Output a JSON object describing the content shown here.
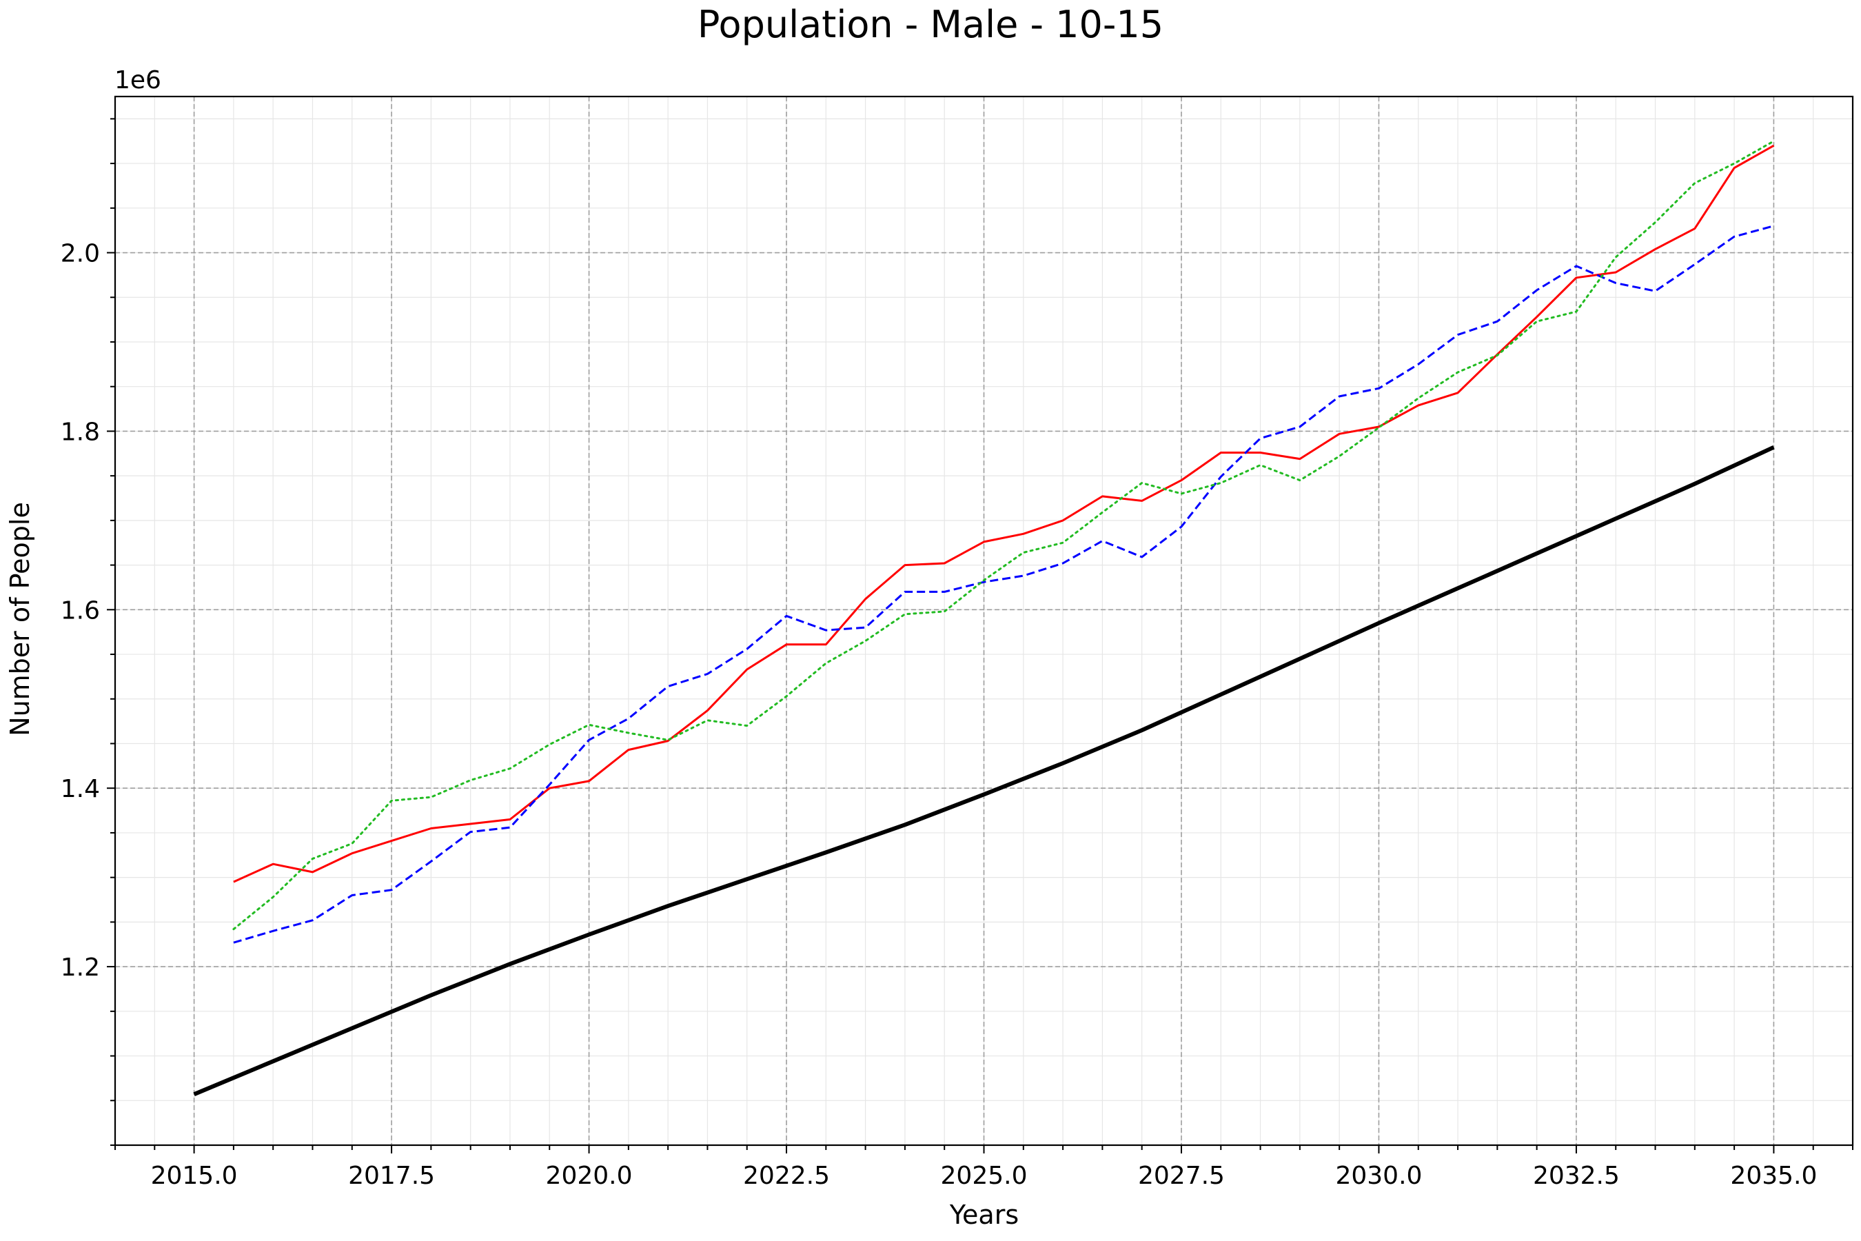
{
  "chart_data": {
    "type": "line",
    "title": "Population - Male - 10-15",
    "xlabel": "Years",
    "ylabel": "Number of People",
    "y_offset_label": "1e6",
    "xlim": [
      2014.0,
      2036.0
    ],
    "ylim": [
      1.0,
      2.175
    ],
    "x_ticks": [
      2015.0,
      2017.5,
      2020.0,
      2022.5,
      2025.0,
      2027.5,
      2030.0,
      2032.5,
      2035.0
    ],
    "x_tick_labels": [
      "2015.0",
      "2017.5",
      "2020.0",
      "2022.5",
      "2025.0",
      "2027.5",
      "2030.0",
      "2032.5",
      "2035.0"
    ],
    "y_ticks": [
      1.2,
      1.4,
      1.6,
      1.8,
      2.0
    ],
    "y_tick_labels": [
      "1.2",
      "1.4",
      "1.6",
      "1.8",
      "2.0"
    ],
    "grid": true,
    "series": [
      {
        "color": "#000000",
        "style": "solid",
        "width": 6,
        "x": [
          2015.0,
          2016.0,
          2017.0,
          2018.0,
          2019.0,
          2020.0,
          2021.0,
          2022.0,
          2023.0,
          2024.0,
          2025.0,
          2026.0,
          2027.0,
          2028.0,
          2029.0,
          2030.0,
          2031.0,
          2032.0,
          2033.0,
          2034.0,
          2035.0
        ],
        "values": [
          1.057,
          1.094,
          1.131,
          1.168,
          1.203,
          1.236,
          1.268,
          1.298,
          1.328,
          1.359,
          1.393,
          1.428,
          1.465,
          1.505,
          1.545,
          1.585,
          1.624,
          1.663,
          1.702,
          1.741,
          1.782
        ]
      },
      {
        "color": "#ff0000",
        "style": "solid",
        "width": 3,
        "x": [
          2015.5,
          2016.0,
          2016.5,
          2017.0,
          2017.5,
          2018.0,
          2018.5,
          2019.0,
          2019.5,
          2020.0,
          2020.5,
          2021.0,
          2021.5,
          2022.0,
          2022.5,
          2023.0,
          2023.5,
          2024.0,
          2024.5,
          2025.0,
          2025.5,
          2026.0,
          2026.5,
          2027.0,
          2027.5,
          2028.0,
          2028.5,
          2029.0,
          2029.5,
          2030.0,
          2030.5,
          2031.0,
          2031.5,
          2032.0,
          2032.5,
          2033.0,
          2033.5,
          2034.0,
          2034.5,
          2035.0
        ],
        "values": [
          1.295,
          1.315,
          1.306,
          1.327,
          1.341,
          1.355,
          1.36,
          1.365,
          1.4,
          1.408,
          1.443,
          1.453,
          1.487,
          1.533,
          1.561,
          1.561,
          1.612,
          1.65,
          1.652,
          1.676,
          1.685,
          1.7,
          1.727,
          1.722,
          1.745,
          1.776,
          1.776,
          1.769,
          1.797,
          1.805,
          1.829,
          1.843,
          1.886,
          1.928,
          1.972,
          1.978,
          2.004,
          2.027,
          2.095,
          2.12
        ]
      },
      {
        "color": "#0000ff",
        "style": "dashed",
        "width": 3,
        "x": [
          2015.5,
          2016.0,
          2016.5,
          2017.0,
          2017.5,
          2018.0,
          2018.5,
          2019.0,
          2019.5,
          2020.0,
          2020.5,
          2021.0,
          2021.5,
          2022.0,
          2022.5,
          2023.0,
          2023.5,
          2024.0,
          2024.5,
          2025.0,
          2025.5,
          2026.0,
          2026.5,
          2027.0,
          2027.5,
          2028.0,
          2028.5,
          2029.0,
          2029.5,
          2030.0,
          2030.5,
          2031.0,
          2031.5,
          2032.0,
          2032.5,
          2033.0,
          2033.5,
          2034.0,
          2034.5,
          2035.0
        ],
        "values": [
          1.227,
          1.24,
          1.252,
          1.28,
          1.286,
          1.318,
          1.351,
          1.356,
          1.404,
          1.454,
          1.478,
          1.514,
          1.528,
          1.556,
          1.593,
          1.577,
          1.58,
          1.62,
          1.62,
          1.631,
          1.638,
          1.652,
          1.677,
          1.659,
          1.693,
          1.749,
          1.792,
          1.805,
          1.839,
          1.848,
          1.875,
          1.908,
          1.923,
          1.958,
          1.985,
          1.966,
          1.957,
          1.987,
          2.018,
          2.03
        ]
      },
      {
        "color": "#22bb22",
        "style": "dotted",
        "width": 3,
        "x": [
          2015.5,
          2016.0,
          2016.5,
          2017.0,
          2017.5,
          2018.0,
          2018.5,
          2019.0,
          2019.5,
          2020.0,
          2020.5,
          2021.0,
          2021.5,
          2022.0,
          2022.5,
          2023.0,
          2023.5,
          2024.0,
          2024.5,
          2025.0,
          2025.5,
          2026.0,
          2026.5,
          2027.0,
          2027.5,
          2028.0,
          2028.5,
          2029.0,
          2029.5,
          2030.0,
          2030.5,
          2031.0,
          2031.5,
          2032.0,
          2032.5,
          2033.0,
          2033.5,
          2034.0,
          2034.5,
          2035.0
        ],
        "values": [
          1.242,
          1.278,
          1.321,
          1.338,
          1.386,
          1.39,
          1.409,
          1.422,
          1.449,
          1.471,
          1.462,
          1.454,
          1.476,
          1.47,
          1.503,
          1.54,
          1.565,
          1.595,
          1.598,
          1.633,
          1.664,
          1.675,
          1.709,
          1.742,
          1.73,
          1.742,
          1.762,
          1.745,
          1.772,
          1.804,
          1.837,
          1.866,
          1.885,
          1.923,
          1.934,
          1.995,
          2.034,
          2.078,
          2.1,
          2.125
        ]
      }
    ]
  }
}
